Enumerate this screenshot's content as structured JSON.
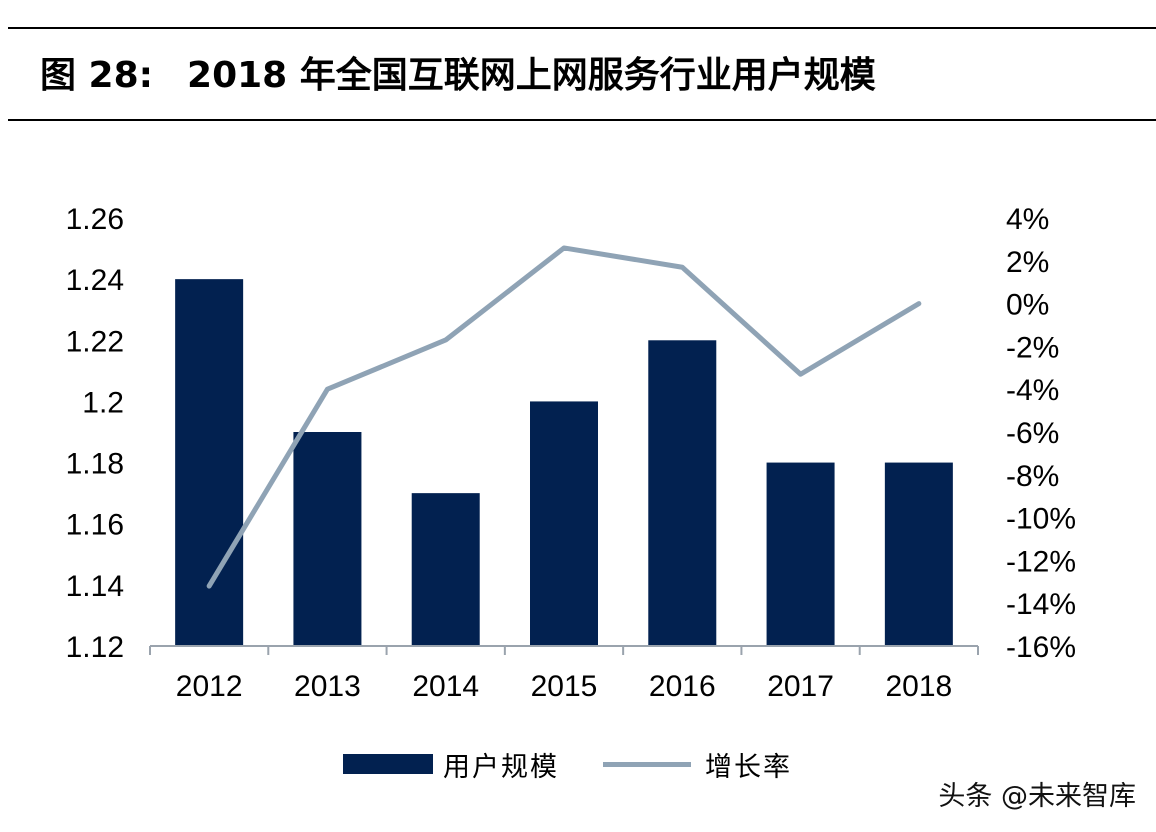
{
  "figure": {
    "label": "图 28:",
    "title": "2018 年全国互联网上网服务行业用户规模"
  },
  "chart_data": {
    "type": "bar",
    "categories": [
      "2012",
      "2013",
      "2014",
      "2015",
      "2016",
      "2017",
      "2018"
    ],
    "series": [
      {
        "name": "用户规模",
        "type": "bar",
        "axis": "left",
        "values": [
          1.24,
          1.19,
          1.17,
          1.2,
          1.22,
          1.18,
          1.18
        ]
      },
      {
        "name": "增长率",
        "type": "line",
        "axis": "right",
        "values": [
          -13.2,
          -4.0,
          -1.7,
          2.6,
          1.7,
          -3.3,
          0.0
        ]
      }
    ],
    "y_left": {
      "min": 1.12,
      "max": 1.26,
      "ticks": [
        "1.12",
        "1.14",
        "1.16",
        "1.18",
        "1.2",
        "1.22",
        "1.24",
        "1.26"
      ]
    },
    "y_right": {
      "min": -16,
      "max": 4,
      "ticks": [
        "-16%",
        "-14%",
        "-12%",
        "-10%",
        "-8%",
        "-6%",
        "-4%",
        "-2%",
        "0%",
        "2%",
        "4%"
      ]
    },
    "grid": false,
    "legend_position": "bottom",
    "colors": {
      "bar": "#022150",
      "line": "#8fa3b5"
    }
  },
  "watermark": "头条 @未来智库"
}
